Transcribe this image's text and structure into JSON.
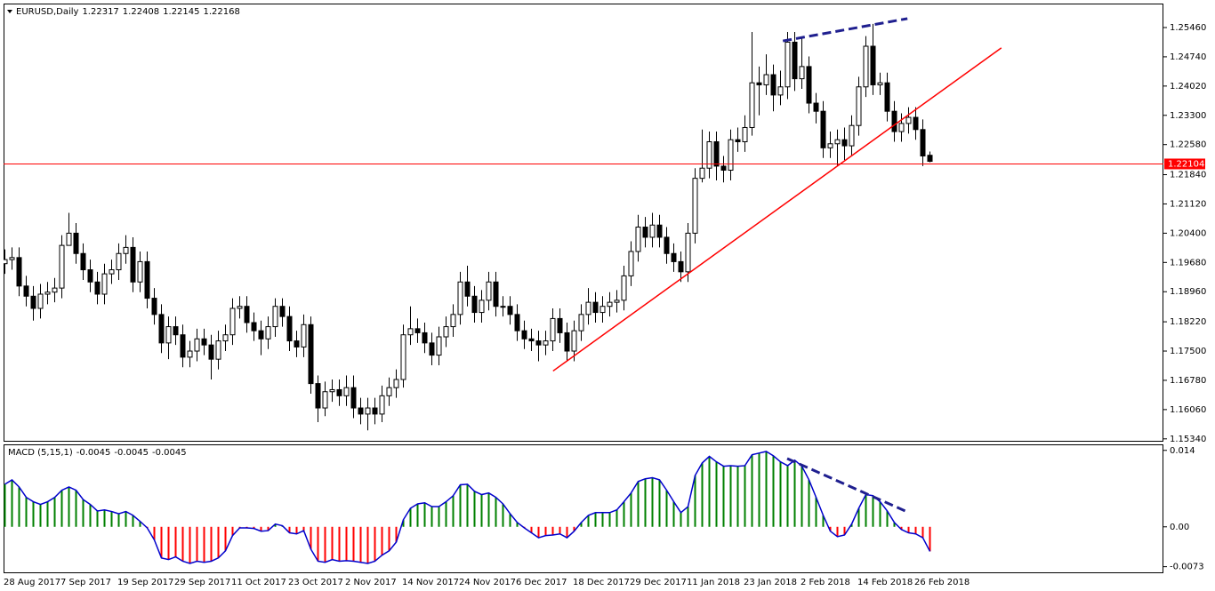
{
  "chart_data": [
    {
      "type": "candlestick",
      "title": "EURUSD,Daily",
      "categories": [
        "28 Aug 2017",
        null,
        null,
        null,
        null,
        null,
        null,
        null,
        "7 Sep 2017",
        null,
        null,
        null,
        null,
        null,
        null,
        null,
        "19 Sep 2017",
        null,
        null,
        null,
        null,
        null,
        null,
        null,
        "29 Sep 2017",
        null,
        null,
        null,
        null,
        null,
        null,
        null,
        "11 Oct 2017",
        null,
        null,
        null,
        null,
        null,
        null,
        null,
        "23 Oct 2017",
        null,
        null,
        null,
        null,
        null,
        null,
        null,
        "2 Nov 2017",
        null,
        null,
        null,
        null,
        null,
        null,
        null,
        "14 Nov 2017",
        null,
        null,
        null,
        null,
        null,
        null,
        null,
        "24 Nov 2017",
        null,
        null,
        null,
        null,
        null,
        null,
        null,
        "6 Dec 2017",
        null,
        null,
        null,
        null,
        null,
        null,
        null,
        "18 Dec 2017",
        null,
        null,
        null,
        null,
        null,
        null,
        null,
        "29 Dec 2017",
        null,
        null,
        null,
        null,
        null,
        null,
        null,
        "11 Jan 2018",
        null,
        null,
        null,
        null,
        null,
        null,
        null,
        "23 Jan 2018",
        null,
        null,
        null,
        null,
        null,
        null,
        null,
        "2 Feb 2018",
        null,
        null,
        null,
        null,
        null,
        null,
        null,
        "14 Feb 2018",
        null,
        null,
        null,
        null,
        null,
        null,
        null,
        "26 Feb 2018",
        null,
        null
      ],
      "open": [
        1.1965,
        1.1975,
        1.198,
        1.191,
        1.1885,
        1.1855,
        1.189,
        1.1895,
        1.1905,
        1.201,
        1.204,
        1.199,
        1.195,
        1.192,
        1.189,
        1.194,
        1.195,
        1.199,
        1.2005,
        1.192,
        1.197,
        1.188,
        1.184,
        1.177,
        1.181,
        1.179,
        1.1735,
        1.175,
        1.178,
        1.1765,
        1.173,
        1.1775,
        1.179,
        1.1855,
        1.186,
        1.182,
        1.18,
        1.178,
        1.181,
        1.186,
        1.1835,
        1.1775,
        1.176,
        1.1815,
        1.167,
        1.161,
        1.165,
        1.1655,
        1.164,
        1.166,
        1.161,
        1.1595,
        1.161,
        1.1595,
        1.164,
        1.166,
        1.168,
        1.179,
        1.1805,
        1.1795,
        1.177,
        1.174,
        1.1785,
        1.181,
        1.184,
        1.192,
        1.1885,
        1.1845,
        1.1875,
        1.192,
        1.186,
        1.186,
        1.184,
        1.18,
        1.178,
        1.1775,
        1.1765,
        1.1775,
        1.183,
        1.1795,
        1.175,
        1.18,
        1.184,
        1.187,
        1.1845,
        1.186,
        1.187,
        1.1875,
        1.1935,
        1.1995,
        1.2055,
        1.203,
        1.206,
        1.203,
        1.199,
        1.197,
        1.1945,
        1.204,
        1.2175,
        1.22,
        1.2265,
        1.2205,
        1.2195,
        1.227,
        1.2265,
        1.23,
        1.241,
        1.2405,
        1.243,
        1.238,
        1.24,
        1.251,
        1.242,
        1.245,
        1.236,
        1.234,
        1.225,
        1.226,
        1.227,
        1.2255,
        1.2305,
        1.24,
        1.25,
        1.2405,
        1.241,
        1.234,
        1.229,
        1.231,
        1.2325,
        1.2295,
        1.22317
      ],
      "high": [
        1.2,
        1.2005,
        1.2005,
        1.1935,
        1.191,
        1.1915,
        1.192,
        1.193,
        1.2035,
        1.209,
        1.2065,
        1.2015,
        1.1975,
        1.1945,
        1.1965,
        1.1975,
        1.2015,
        1.2035,
        1.203,
        1.1995,
        1.1995,
        1.1905,
        1.1865,
        1.1835,
        1.1835,
        1.1815,
        1.1775,
        1.1805,
        1.1805,
        1.179,
        1.18,
        1.1815,
        1.188,
        1.1885,
        1.1885,
        1.1845,
        1.1825,
        1.1835,
        1.188,
        1.188,
        1.186,
        1.18,
        1.184,
        1.1835,
        1.169,
        1.1675,
        1.168,
        1.168,
        1.169,
        1.169,
        1.1635,
        1.1635,
        1.1635,
        1.1665,
        1.1685,
        1.1705,
        1.1815,
        1.186,
        1.183,
        1.182,
        1.1795,
        1.181,
        1.1835,
        1.1865,
        1.1945,
        1.196,
        1.191,
        1.19,
        1.1945,
        1.1945,
        1.1885,
        1.1885,
        1.1865,
        1.1825,
        1.1805,
        1.18,
        1.18,
        1.1855,
        1.1855,
        1.182,
        1.1825,
        1.1865,
        1.1905,
        1.1895,
        1.1885,
        1.1895,
        1.19,
        1.196,
        1.202,
        1.2085,
        1.208,
        1.209,
        1.2085,
        1.2055,
        1.2015,
        1.1995,
        1.2065,
        1.22,
        1.2295,
        1.229,
        1.229,
        1.223,
        1.2295,
        1.23,
        1.233,
        1.2535,
        1.245,
        1.248,
        1.2455,
        1.244,
        1.2535,
        1.2535,
        1.252,
        1.2475,
        1.2385,
        1.2365,
        1.229,
        1.2295,
        1.23,
        1.233,
        1.2425,
        1.2525,
        1.2555,
        1.2435,
        1.2435,
        1.2365,
        1.2335,
        1.235,
        1.235,
        1.232,
        1.22408
      ],
      "low": [
        1.194,
        1.195,
        1.1885,
        1.186,
        1.1825,
        1.183,
        1.1865,
        1.187,
        1.188,
        1.2015,
        1.1965,
        1.1925,
        1.1895,
        1.1865,
        1.1865,
        1.1915,
        1.1925,
        1.1965,
        1.1895,
        1.1895,
        1.1855,
        1.1815,
        1.1745,
        1.173,
        1.1765,
        1.171,
        1.171,
        1.1725,
        1.174,
        1.168,
        1.1705,
        1.175,
        1.1765,
        1.183,
        1.1795,
        1.1775,
        1.174,
        1.1755,
        1.1785,
        1.181,
        1.175,
        1.1735,
        1.1735,
        1.1645,
        1.1575,
        1.159,
        1.1625,
        1.1615,
        1.1615,
        1.1585,
        1.157,
        1.1555,
        1.157,
        1.1575,
        1.1615,
        1.1635,
        1.166,
        1.1765,
        1.177,
        1.1745,
        1.1715,
        1.1715,
        1.176,
        1.1785,
        1.1815,
        1.186,
        1.182,
        1.182,
        1.185,
        1.1835,
        1.1835,
        1.1815,
        1.1775,
        1.1755,
        1.175,
        1.1725,
        1.174,
        1.175,
        1.177,
        1.1725,
        1.1725,
        1.1775,
        1.1815,
        1.182,
        1.182,
        1.1835,
        1.1845,
        1.185,
        1.191,
        1.197,
        1.2005,
        1.2005,
        1.2005,
        1.1965,
        1.1945,
        1.192,
        1.192,
        1.2015,
        1.2165,
        1.2175,
        1.217,
        1.2165,
        1.217,
        1.224,
        1.224,
        1.228,
        1.233,
        1.238,
        1.234,
        1.2355,
        1.237,
        1.239,
        1.2395,
        1.2335,
        1.231,
        1.2225,
        1.2225,
        1.2205,
        1.222,
        1.223,
        1.228,
        1.2375,
        1.238,
        1.238,
        1.2315,
        1.2265,
        1.2265,
        1.2285,
        1.227,
        1.2205,
        1.22145
      ],
      "close": [
        1.1975,
        1.198,
        1.191,
        1.1885,
        1.1855,
        1.189,
        1.1895,
        1.1905,
        1.201,
        1.204,
        1.199,
        1.195,
        1.192,
        1.189,
        1.194,
        1.195,
        1.199,
        1.2005,
        1.192,
        1.197,
        1.188,
        1.184,
        1.177,
        1.181,
        1.179,
        1.1735,
        1.175,
        1.178,
        1.1765,
        1.173,
        1.1775,
        1.179,
        1.1855,
        1.186,
        1.182,
        1.18,
        1.178,
        1.181,
        1.186,
        1.1835,
        1.1775,
        1.176,
        1.1815,
        1.167,
        1.161,
        1.165,
        1.1655,
        1.164,
        1.166,
        1.161,
        1.1595,
        1.161,
        1.1595,
        1.164,
        1.166,
        1.168,
        1.179,
        1.1805,
        1.1795,
        1.177,
        1.174,
        1.1785,
        1.181,
        1.184,
        1.192,
        1.1885,
        1.1845,
        1.1875,
        1.192,
        1.186,
        1.186,
        1.184,
        1.18,
        1.178,
        1.1775,
        1.1765,
        1.1775,
        1.183,
        1.1795,
        1.175,
        1.18,
        1.184,
        1.187,
        1.1845,
        1.186,
        1.187,
        1.1875,
        1.1935,
        1.1995,
        1.2055,
        1.203,
        1.206,
        1.203,
        1.199,
        1.197,
        1.1945,
        1.204,
        1.2175,
        1.22,
        1.2265,
        1.2205,
        1.2195,
        1.227,
        1.2265,
        1.23,
        1.241,
        1.2405,
        1.243,
        1.238,
        1.24,
        1.251,
        1.242,
        1.245,
        1.236,
        1.234,
        1.225,
        1.226,
        1.227,
        1.2255,
        1.2305,
        1.24,
        1.25,
        1.2405,
        1.241,
        1.234,
        1.229,
        1.231,
        1.2325,
        1.2295,
        1.223,
        1.22168
      ],
      "up_color": "#ffffff",
      "down_color": "#000000",
      "ylim": [
        1.1527,
        1.2605
      ],
      "yticks": [
        {
          "value": 1.2546,
          "label": "1.25460"
        },
        {
          "value": 1.2474,
          "label": "1.24740"
        },
        {
          "value": 1.2402,
          "label": "1.24020"
        },
        {
          "value": 1.233,
          "label": "1.23300"
        },
        {
          "value": 1.2258,
          "label": "1.22580"
        },
        {
          "value": 1.2184,
          "label": "1.21840"
        },
        {
          "value": 1.2112,
          "label": "1.21120"
        },
        {
          "value": 1.204,
          "label": "1.20400"
        },
        {
          "value": 1.1968,
          "label": "1.19680"
        },
        {
          "value": 1.1896,
          "label": "1.18960"
        },
        {
          "value": 1.1822,
          "label": "1.18220"
        },
        {
          "value": 1.175,
          "label": "1.17500"
        },
        {
          "value": 1.1678,
          "label": "1.16780"
        },
        {
          "value": 1.1606,
          "label": "1.16060"
        },
        {
          "value": 1.1534,
          "label": "1.15340"
        }
      ],
      "price_line": 1.22104,
      "price_line_color": "#ff0000",
      "trendlines": [
        {
          "x": [
            77.1,
            140.1
          ],
          "y": [
            1.1701,
            1.2496
          ],
          "color": "#ff0000",
          "dashed": false
        },
        {
          "x": [
            109.4,
            126.9
          ],
          "y": [
            1.2513,
            1.2568
          ],
          "color": "#1f1f8f",
          "dashed": true
        }
      ]
    },
    {
      "type": "macd",
      "title": "MACD (5,15,1)",
      "values": [
        0.0078,
        0.0086,
        0.0073,
        0.0054,
        0.0046,
        0.0041,
        0.0046,
        0.0054,
        0.0067,
        0.0073,
        0.0067,
        0.005,
        0.0041,
        0.0029,
        0.0031,
        0.0028,
        0.0024,
        0.0028,
        0.0021,
        0.001,
        -0.0002,
        -0.0024,
        -0.0057,
        -0.006,
        -0.0055,
        -0.0063,
        -0.0067,
        -0.0063,
        -0.0065,
        -0.0063,
        -0.0057,
        -0.0044,
        -0.0016,
        -0.0002,
        -0.0002,
        -0.0003,
        -0.0008,
        -0.0007,
        0.0005,
        0.0002,
        -0.0011,
        -0.0013,
        -0.0007,
        -0.0041,
        -0.0063,
        -0.0065,
        -0.006,
        -0.0063,
        -0.0062,
        -0.0063,
        -0.0065,
        -0.0067,
        -0.0063,
        -0.0052,
        -0.0044,
        -0.0028,
        0.0013,
        0.0034,
        0.0042,
        0.0044,
        0.0037,
        0.0037,
        0.0046,
        0.0057,
        0.0077,
        0.0078,
        0.0065,
        0.0059,
        0.0062,
        0.0054,
        0.0042,
        0.0024,
        0.0008,
        -0.0002,
        -0.0011,
        -0.002,
        -0.0016,
        -0.0015,
        -0.0013,
        -0.002,
        -0.0008,
        0.0008,
        0.0021,
        0.0026,
        0.0026,
        0.0026,
        0.0031,
        0.0046,
        0.0062,
        0.0083,
        0.0088,
        0.009,
        0.0086,
        0.0067,
        0.0046,
        0.0026,
        0.0037,
        0.0094,
        0.0117,
        0.0129,
        0.0119,
        0.0111,
        0.0112,
        0.0111,
        0.0112,
        0.0132,
        0.0135,
        0.0138,
        0.013,
        0.0119,
        0.0112,
        0.0122,
        0.0111,
        0.0086,
        0.0054,
        0.0021,
        -0.0008,
        -0.0018,
        -0.0015,
        0.0005,
        0.0034,
        0.0059,
        0.0057,
        0.0046,
        0.0029,
        0.0008,
        -0.0005,
        -0.0011,
        -0.0013,
        -0.002,
        -0.0045
      ],
      "positive_color": "#008000",
      "negative_color": "#ff0000",
      "line_color": "#0000cd",
      "ylim": [
        -0.0085,
        0.0151
      ],
      "yticks": [
        0.014,
        {
          "value": 0,
          "label": "0.00"
        },
        -0.0073
      ],
      "trendlines": [
        {
          "x": [
            110,
            126.6
          ],
          "y": [
            0.0125,
            0.0029
          ],
          "color": "#1f1f8f",
          "dashed": true
        }
      ]
    }
  ]
}
